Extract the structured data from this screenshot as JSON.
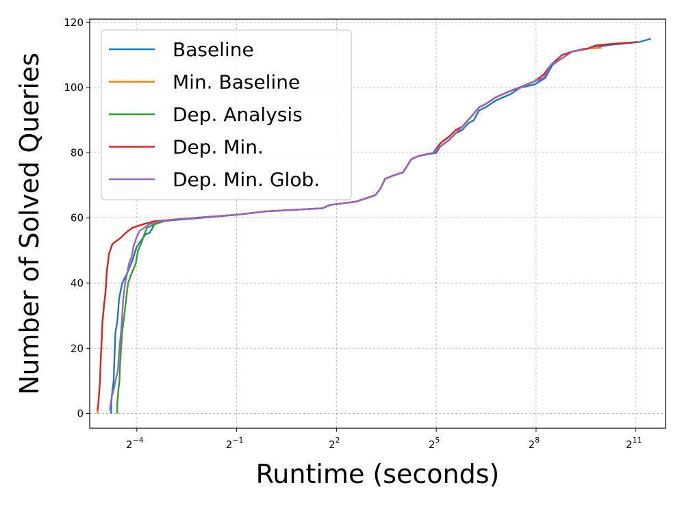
{
  "chart_data": {
    "type": "line",
    "title": "",
    "xlabel": "Runtime (seconds)",
    "ylabel": "Number of Solved Queries",
    "x_scale": "log2",
    "xlim": [
      0.0234,
      3800
    ],
    "ylim": [
      -4.5,
      121
    ],
    "x_ticks": [
      {
        "value": 0.0625,
        "base": "2",
        "exp": "−4"
      },
      {
        "value": 0.5,
        "base": "2",
        "exp": "−1"
      },
      {
        "value": 4,
        "base": "2",
        "exp": "2"
      },
      {
        "value": 32,
        "base": "2",
        "exp": "5"
      },
      {
        "value": 256,
        "base": "2",
        "exp": "8"
      },
      {
        "value": 2048,
        "base": "2",
        "exp": "11"
      }
    ],
    "y_ticks": [
      0,
      20,
      40,
      60,
      80,
      100,
      120
    ],
    "grid": true,
    "legend_position": "top-left",
    "series": [
      {
        "name": "Baseline",
        "color": "#1f77b4",
        "points": [
          [
            0.0365,
            0
          ],
          [
            0.037,
            5
          ],
          [
            0.0385,
            10
          ],
          [
            0.039,
            15
          ],
          [
            0.0395,
            20
          ],
          [
            0.04,
            25
          ],
          [
            0.0415,
            28
          ],
          [
            0.0425,
            32
          ],
          [
            0.043,
            35
          ],
          [
            0.046,
            40
          ],
          [
            0.051,
            43
          ],
          [
            0.057,
            47
          ],
          [
            0.062,
            51
          ],
          [
            0.068,
            53
          ],
          [
            0.075,
            55
          ],
          [
            0.082,
            55.5
          ],
          [
            0.09,
            58
          ],
          [
            0.1,
            59
          ],
          [
            0.2,
            59.8
          ],
          [
            0.5,
            61
          ],
          [
            0.9,
            62
          ],
          [
            3.0,
            63
          ],
          [
            3.5,
            64
          ],
          [
            6.0,
            65
          ],
          [
            9.0,
            67
          ],
          [
            10.0,
            69
          ],
          [
            11.0,
            72
          ],
          [
            13.0,
            73
          ],
          [
            16.0,
            74
          ],
          [
            19.0,
            78
          ],
          [
            22.0,
            79
          ],
          [
            32.0,
            80
          ],
          [
            35.0,
            82
          ],
          [
            42.0,
            84
          ],
          [
            48.0,
            86
          ],
          [
            55.0,
            87
          ],
          [
            62.0,
            89
          ],
          [
            70.0,
            90
          ],
          [
            78.0,
            93
          ],
          [
            90.0,
            94
          ],
          [
            110.0,
            96
          ],
          [
            150.0,
            98
          ],
          [
            185.0,
            100
          ],
          [
            250.0,
            101
          ],
          [
            310.0,
            103
          ],
          [
            360.0,
            107
          ],
          [
            440.0,
            109
          ],
          [
            540.0,
            111
          ],
          [
            760.0,
            112
          ],
          [
            1140.0,
            113
          ],
          [
            2200.0,
            114
          ],
          [
            2800.0,
            115
          ]
        ]
      },
      {
        "name": "Min. Baseline",
        "color": "#ff7f0e",
        "points": [
          [
            0.0275,
            0
          ],
          [
            0.028,
            3
          ],
          [
            0.029,
            10
          ],
          [
            0.0295,
            17
          ],
          [
            0.03,
            22
          ],
          [
            0.0305,
            28
          ],
          [
            0.0315,
            33
          ],
          [
            0.0325,
            37
          ],
          [
            0.0335,
            44
          ],
          [
            0.035,
            49
          ],
          [
            0.0375,
            52
          ],
          [
            0.041,
            53
          ],
          [
            0.045,
            54
          ],
          [
            0.048,
            55
          ],
          [
            0.052,
            56
          ],
          [
            0.057,
            57
          ],
          [
            0.07,
            58
          ],
          [
            0.09,
            59
          ],
          [
            0.2,
            60
          ],
          [
            0.5,
            61
          ],
          [
            0.9,
            62
          ],
          [
            3.0,
            63
          ],
          [
            3.5,
            64
          ],
          [
            6.0,
            65
          ],
          [
            9.0,
            67
          ],
          [
            10.0,
            69
          ],
          [
            11.0,
            72
          ],
          [
            13.0,
            73
          ],
          [
            16.0,
            74
          ],
          [
            19.0,
            78
          ],
          [
            22.0,
            79
          ],
          [
            30.0,
            80
          ],
          [
            35.0,
            83
          ],
          [
            42.0,
            85
          ],
          [
            48.0,
            87
          ],
          [
            55.0,
            88
          ],
          [
            62.0,
            90
          ],
          [
            70.0,
            92
          ],
          [
            78.0,
            94
          ],
          [
            90.0,
            95
          ],
          [
            110.0,
            97
          ],
          [
            150.0,
            99
          ],
          [
            180.0,
            100
          ],
          [
            250.0,
            102
          ],
          [
            300.0,
            104
          ],
          [
            350.0,
            107
          ],
          [
            440.0,
            110
          ],
          [
            540.0,
            111
          ],
          [
            750.0,
            112
          ],
          [
            1000.0,
            112.2
          ]
        ]
      },
      {
        "name": "Dep. Analysis",
        "color": "#2ca02c",
        "points": [
          [
            0.0415,
            0
          ],
          [
            0.0415,
            3
          ],
          [
            0.0425,
            7
          ],
          [
            0.0435,
            10
          ],
          [
            0.044,
            15
          ],
          [
            0.045,
            20
          ],
          [
            0.046,
            25
          ],
          [
            0.048,
            30
          ],
          [
            0.05,
            35
          ],
          [
            0.052,
            40
          ],
          [
            0.056,
            43
          ],
          [
            0.061,
            46
          ],
          [
            0.064,
            50
          ],
          [
            0.068,
            52
          ],
          [
            0.073,
            55
          ],
          [
            0.077,
            57
          ],
          [
            0.09,
            58
          ],
          [
            0.11,
            59
          ],
          [
            0.2,
            60
          ],
          [
            0.5,
            61
          ],
          [
            0.9,
            62
          ],
          [
            3.0,
            63
          ],
          [
            3.5,
            64
          ],
          [
            6.0,
            65
          ],
          [
            9.0,
            67
          ],
          [
            10.0,
            69
          ],
          [
            11.0,
            72
          ],
          [
            13.0,
            73
          ],
          [
            16.0,
            74
          ],
          [
            19.0,
            78
          ],
          [
            22.0,
            79
          ],
          [
            30.0,
            80
          ],
          [
            35.0,
            82
          ],
          [
            42.0,
            84
          ],
          [
            48.0,
            86
          ],
          [
            55.0,
            88
          ],
          [
            62.0,
            90
          ],
          [
            70.0,
            92
          ],
          [
            78.0,
            94
          ],
          [
            90.0,
            95
          ],
          [
            110.0,
            97
          ],
          [
            150.0,
            99
          ],
          [
            185.0,
            100
          ],
          [
            250.0,
            102
          ],
          [
            300.0,
            103
          ],
          [
            350.0,
            107
          ],
          [
            440.0,
            109
          ],
          [
            540.0,
            111
          ],
          [
            760.0,
            112
          ]
        ]
      },
      {
        "name": "Dep. Min.",
        "color": "#d62728",
        "points": [
          [
            0.0275,
            1
          ],
          [
            0.028,
            3
          ],
          [
            0.029,
            10
          ],
          [
            0.0295,
            17
          ],
          [
            0.03,
            22
          ],
          [
            0.0305,
            28
          ],
          [
            0.0315,
            33
          ],
          [
            0.0325,
            37
          ],
          [
            0.0335,
            44
          ],
          [
            0.035,
            49
          ],
          [
            0.0375,
            52
          ],
          [
            0.041,
            53
          ],
          [
            0.045,
            54
          ],
          [
            0.048,
            55
          ],
          [
            0.052,
            56
          ],
          [
            0.057,
            57
          ],
          [
            0.07,
            58
          ],
          [
            0.09,
            59
          ],
          [
            0.2,
            60
          ],
          [
            0.5,
            61
          ],
          [
            0.9,
            62
          ],
          [
            3.0,
            63
          ],
          [
            3.5,
            64
          ],
          [
            6.0,
            65
          ],
          [
            9.0,
            67
          ],
          [
            10.0,
            69
          ],
          [
            11.0,
            72
          ],
          [
            13.0,
            73
          ],
          [
            16.0,
            74
          ],
          [
            19.0,
            78
          ],
          [
            22.0,
            79
          ],
          [
            30.0,
            80
          ],
          [
            35.0,
            83
          ],
          [
            42.0,
            85
          ],
          [
            48.0,
            87
          ],
          [
            55.0,
            88
          ],
          [
            62.0,
            90
          ],
          [
            70.0,
            92
          ],
          [
            78.0,
            94
          ],
          [
            90.0,
            95
          ],
          [
            110.0,
            97
          ],
          [
            150.0,
            99
          ],
          [
            180.0,
            100
          ],
          [
            250.0,
            102
          ],
          [
            300.0,
            104
          ],
          [
            350.0,
            107
          ],
          [
            440.0,
            110
          ],
          [
            540.0,
            111
          ],
          [
            750.0,
            112
          ],
          [
            900.0,
            113
          ],
          [
            1350.0,
            113.5
          ],
          [
            2100.0,
            114
          ]
        ]
      },
      {
        "name": "Dep. Min. Glob.",
        "color": "#9467bd",
        "points": [
          [
            0.0355,
            1
          ],
          [
            0.037,
            5
          ],
          [
            0.039,
            8
          ],
          [
            0.04,
            10
          ],
          [
            0.042,
            13
          ],
          [
            0.043,
            18
          ],
          [
            0.044,
            22
          ],
          [
            0.045,
            25
          ],
          [
            0.046,
            30
          ],
          [
            0.047,
            35
          ],
          [
            0.049,
            40
          ],
          [
            0.051,
            43
          ],
          [
            0.053,
            46
          ],
          [
            0.056,
            48
          ],
          [
            0.058,
            51
          ],
          [
            0.062,
            54
          ],
          [
            0.066,
            56
          ],
          [
            0.073,
            57
          ],
          [
            0.08,
            58
          ],
          [
            0.1,
            59
          ],
          [
            0.2,
            60
          ],
          [
            0.5,
            61
          ],
          [
            0.9,
            62
          ],
          [
            3.0,
            63
          ],
          [
            3.5,
            64
          ],
          [
            6.0,
            65
          ],
          [
            9.0,
            67
          ],
          [
            10.0,
            69
          ],
          [
            11.0,
            72
          ],
          [
            13.0,
            73
          ],
          [
            16.0,
            74
          ],
          [
            19.0,
            78
          ],
          [
            22.0,
            79
          ],
          [
            30.0,
            80
          ],
          [
            35.0,
            82
          ],
          [
            42.0,
            84
          ],
          [
            48.0,
            86
          ],
          [
            55.0,
            88
          ],
          [
            62.0,
            90
          ],
          [
            70.0,
            92
          ],
          [
            78.0,
            94
          ],
          [
            90.0,
            95
          ],
          [
            110.0,
            97
          ],
          [
            150.0,
            99
          ],
          [
            185.0,
            100
          ],
          [
            250.0,
            102
          ],
          [
            300.0,
            103
          ],
          [
            350.0,
            107
          ],
          [
            440.0,
            109
          ],
          [
            540.0,
            111
          ],
          [
            700.0,
            112
          ]
        ]
      }
    ]
  }
}
